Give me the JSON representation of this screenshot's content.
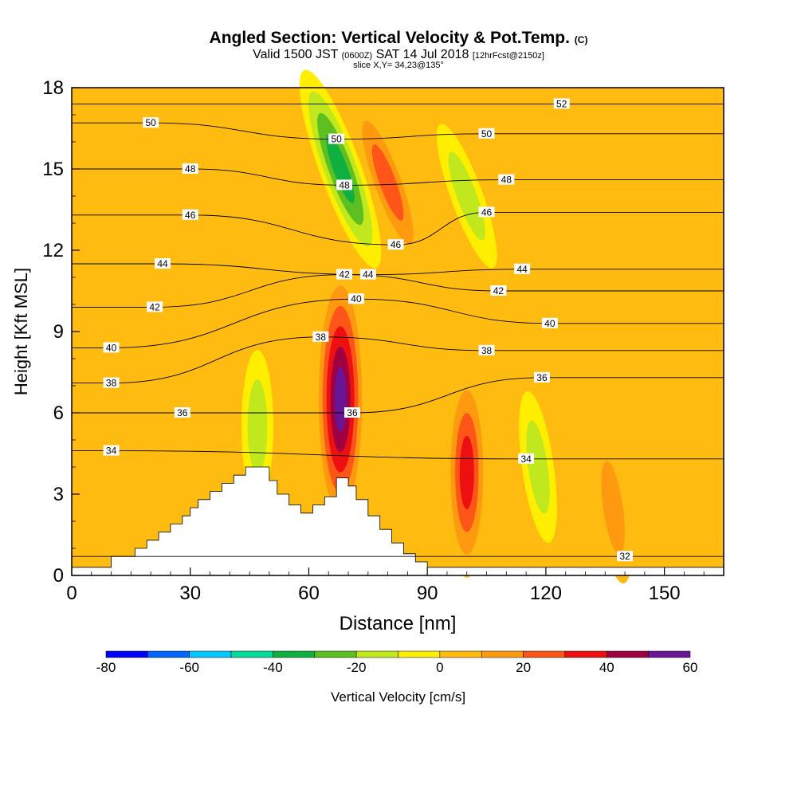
{
  "chart_data": {
    "type": "heatmap",
    "title": "Angled Section: Vertical Velocity & Pot.Temp.",
    "title_unit": "(C)",
    "subtitle": {
      "valid": "Valid 1500 JST",
      "utc": "(0600Z)",
      "date": "SAT 14 Jul 2018",
      "forecast": "[12hrFcst@2150z]"
    },
    "slice_label": "slice X,Y= 34,23@135°",
    "xlabel": "Distance [nm]",
    "ylabel": "Height [Kft MSL]",
    "xlim": [
      0,
      165
    ],
    "ylim": [
      0,
      18
    ],
    "x_ticks": [
      0,
      30,
      60,
      90,
      120,
      150
    ],
    "y_ticks": [
      0,
      3,
      6,
      9,
      12,
      15,
      18
    ],
    "colorbar": {
      "label": "Vertical Velocity [cm/s]",
      "levels": [
        -80,
        -70,
        -60,
        -50,
        -40,
        -30,
        -20,
        -10,
        0,
        10,
        20,
        30,
        40,
        50,
        60
      ],
      "tick_labels": [
        -80,
        -60,
        -40,
        -20,
        0,
        20,
        40,
        60
      ],
      "colors": [
        "#0000ff",
        "#0066ff",
        "#00c8ff",
        "#00dc9a",
        "#10b040",
        "#5ec020",
        "#c0e81c",
        "#ffee00",
        "#ffbb10",
        "#ff9a10",
        "#ff5518",
        "#ee1010",
        "#a00040",
        "#6a1496"
      ]
    },
    "vertical_velocity_features": [
      {
        "x": 68,
        "y": 6.5,
        "value": 60,
        "kind": "updraft"
      },
      {
        "x": 100,
        "y": 3.8,
        "value": 40,
        "kind": "updraft"
      },
      {
        "x": 80,
        "y": 14.5,
        "value": 30,
        "kind": "updraft"
      },
      {
        "x": 68,
        "y": 15,
        "value": -40,
        "kind": "downdraft"
      },
      {
        "x": 100,
        "y": 14,
        "value": -20,
        "kind": "downdraft"
      },
      {
        "x": 47,
        "y": 5.5,
        "value": -20,
        "kind": "downdraft"
      },
      {
        "x": 118,
        "y": 4,
        "value": -20,
        "kind": "downdraft"
      },
      {
        "x": 137,
        "y": 2.5,
        "value": 20,
        "kind": "updraft"
      }
    ],
    "theta_contours": [
      {
        "value": 32,
        "label_x": 140,
        "label_y": 0.7
      },
      {
        "value": 34,
        "label_x": 10,
        "label_y": 4.6
      },
      {
        "value": 34,
        "label_x": 115,
        "label_y": 4.3
      },
      {
        "value": 36,
        "label_x": 28,
        "label_y": 6
      },
      {
        "value": 36,
        "label_x": 71,
        "label_y": 6
      },
      {
        "value": 36,
        "label_x": 119,
        "label_y": 7.3
      },
      {
        "value": 38,
        "label_x": 10,
        "label_y": 7.1
      },
      {
        "value": 38,
        "label_x": 63,
        "label_y": 8.8
      },
      {
        "value": 38,
        "label_x": 105,
        "label_y": 8.3
      },
      {
        "value": 40,
        "label_x": 10,
        "label_y": 8.4
      },
      {
        "value": 40,
        "label_x": 72,
        "label_y": 10.2
      },
      {
        "value": 40,
        "label_x": 121,
        "label_y": 9.3
      },
      {
        "value": 42,
        "label_x": 21,
        "label_y": 9.9
      },
      {
        "value": 42,
        "label_x": 69,
        "label_y": 11.1
      },
      {
        "value": 42,
        "label_x": 108,
        "label_y": 10.5
      },
      {
        "value": 44,
        "label_x": 23,
        "label_y": 11.5
      },
      {
        "value": 44,
        "label_x": 75,
        "label_y": 11.1
      },
      {
        "value": 44,
        "label_x": 114,
        "label_y": 11.3
      },
      {
        "value": 46,
        "label_x": 30,
        "label_y": 13.3
      },
      {
        "value": 46,
        "label_x": 82,
        "label_y": 12.2
      },
      {
        "value": 46,
        "label_x": 105,
        "label_y": 13.4
      },
      {
        "value": 48,
        "label_x": 30,
        "label_y": 15
      },
      {
        "value": 48,
        "label_x": 69,
        "label_y": 14.4
      },
      {
        "value": 48,
        "label_x": 110,
        "label_y": 14.6
      },
      {
        "value": 50,
        "label_x": 20,
        "label_y": 16.7
      },
      {
        "value": 50,
        "label_x": 67,
        "label_y": 16.1
      },
      {
        "value": 50,
        "label_x": 105,
        "label_y": 16.3
      },
      {
        "value": 52,
        "label_x": 124,
        "label_y": 17.4
      }
    ],
    "terrain_profile": {
      "x": [
        0,
        3,
        10,
        16,
        19,
        22,
        25,
        28,
        30,
        32,
        35,
        38,
        41,
        44,
        47,
        50,
        52,
        55,
        58,
        61,
        64,
        67,
        70,
        72,
        75,
        78,
        81,
        84,
        87,
        90,
        165
      ],
      "y": [
        0.3,
        0.3,
        0.7,
        1.0,
        1.3,
        1.6,
        1.9,
        2.2,
        2.5,
        2.8,
        3.1,
        3.4,
        3.7,
        4.0,
        4.0,
        3.5,
        3.0,
        2.6,
        2.3,
        2.6,
        2.9,
        3.6,
        3.3,
        2.8,
        2.2,
        1.7,
        1.2,
        0.8,
        0.5,
        0.3,
        0.3
      ]
    }
  }
}
